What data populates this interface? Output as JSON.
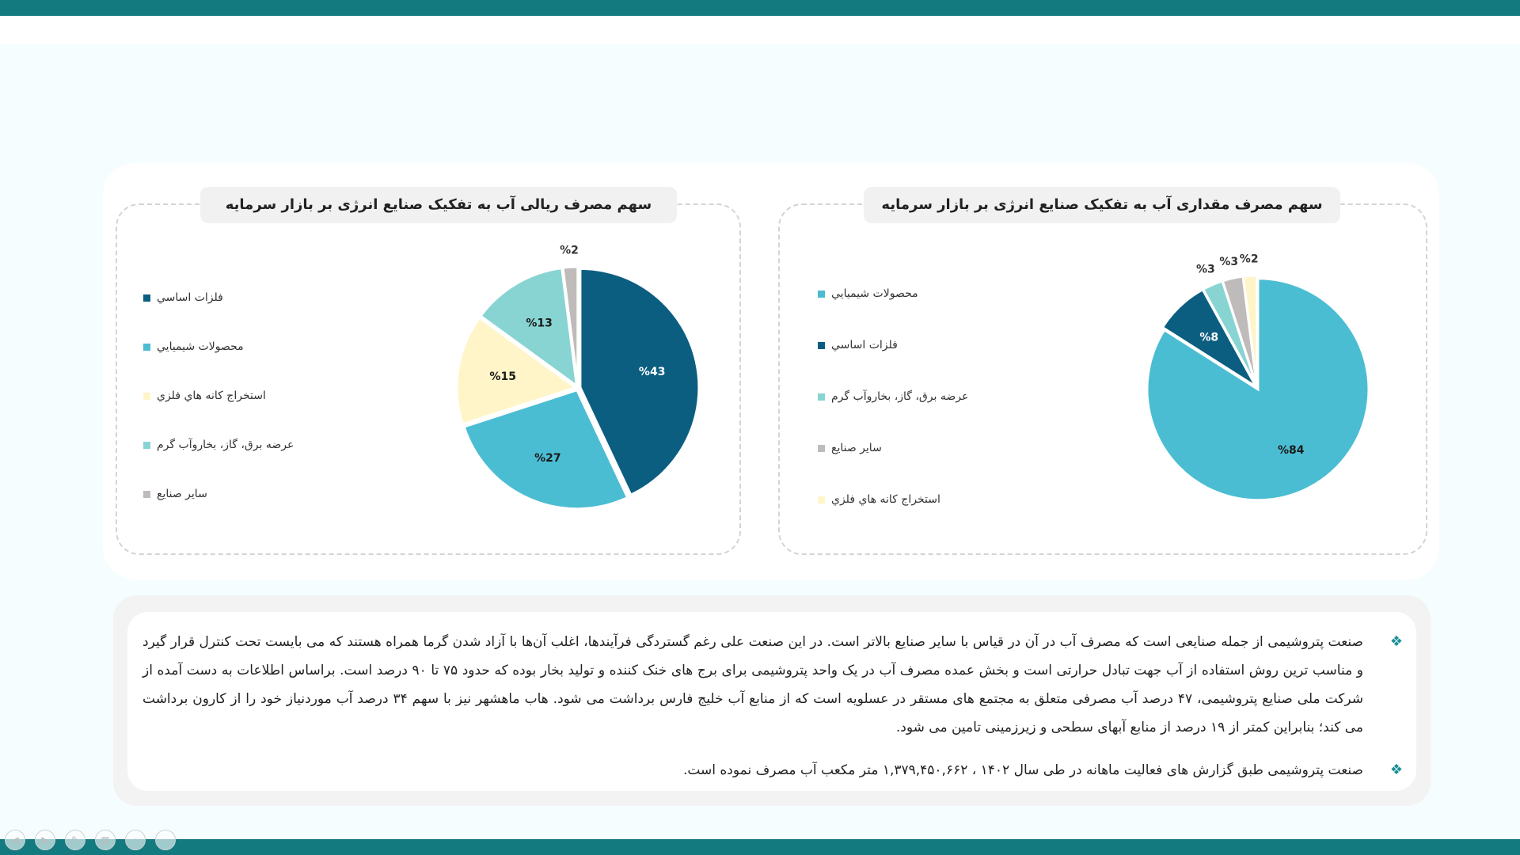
{
  "colors": {
    "dark_teal": "#0b5e80",
    "sky": "#4bbdd2",
    "cream": "#fff5c8",
    "mint": "#88d4d3",
    "gray": "#c0bbbb",
    "brand_bar": "#137a80"
  },
  "chart_data": [
    {
      "type": "pie",
      "title": "سهم مصرف ریالی آب به تفکیک صنایع انرژی بر بازار سرمایه",
      "legend_position": "left",
      "slices": [
        {
          "name": "فلزات اساسي",
          "value": 43,
          "label": "%43",
          "color": "#0b5e80"
        },
        {
          "name": "محصولات شيميايي",
          "value": 27,
          "label": "%27",
          "color": "#4bbdd2"
        },
        {
          "name": "استخراج کانه هاي فلزي",
          "value": 15,
          "label": "%15",
          "color": "#fff5c8"
        },
        {
          "name": "عرضه برق، گاز، بخاروآب گرم",
          "value": 13,
          "label": "%13",
          "color": "#88d4d3"
        },
        {
          "name": "ساير صنايع",
          "value": 2,
          "label": "%2",
          "color": "#c0bbbb"
        }
      ]
    },
    {
      "type": "pie",
      "title": "سهم مصرف مقداری آب به تفکیک صنایع انرژی بر بازار سرمایه",
      "legend_position": "left",
      "slices": [
        {
          "name": "محصولات شيميايي",
          "value": 84,
          "label": "%84",
          "color": "#4bbdd2"
        },
        {
          "name": "فلزات اساسي",
          "value": 8,
          "label": "%8",
          "color": "#0b5e80"
        },
        {
          "name": "عرضه برق، گاز، بخاروآب گرم",
          "value": 3,
          "label": "%3",
          "color": "#88d4d3"
        },
        {
          "name": "ساير صنايع",
          "value": 3,
          "label": "%3",
          "color": "#c0bbbb"
        },
        {
          "name": "استخراج کانه هاي فلزي",
          "value": 2,
          "label": "%2",
          "color": "#fff5c8"
        }
      ]
    }
  ],
  "paragraphs": [
    "صنعت پتروشیمی از جمله صنایعی است که مصرف آب در آن در قیاس با سایر صنایع بالاتر است. در این صنعت علی رغم گستردگی فرآیندها، اغلب آن‌ها با آزاد شدن گرما همراه هستند که می بایست تحت کنترل قرار گیرد و مناسب ترین روش استفاده از آب جهت تبادل حرارتی است و بخش عمده مصرف آب در یک واحد پتروشیمی برای برج های خنک کننده و تولید بخار بوده که حدود ۷۵ تا ۹۰ درصد است. براساس اطلاعات به دست آمده از شرکت ملی صنایع پتروشیمی، ۴۷ درصد آب مصرفی متعلق به مجتمع های مستقر در عسلویه است که از منابع آب خلیج فارس برداشت می شود. هاب ماهشهر نیز با سهم ۳۴ درصد آب موردنیاز خود را از کارون برداشت می کند؛ بنابراین کمتر از ۱۹ درصد از منابع آبهای سطحی و زیرزمینی تامین می شود.",
    "صنعت پتروشیمی طبق گزارش های فعالیت ماهانه در طی سال ۱۴۰۲ ، ۱,۳۷۹,۴۵۰,۶۶۲  متر مکعب آب مصرف نموده است."
  ],
  "bullet_symbol": "❖",
  "nav_icons": [
    "prev-icon",
    "next-icon",
    "pen-icon",
    "slides-icon",
    "zoom-icon",
    "more-icon"
  ],
  "nav_glyphs": [
    "◀",
    "▶",
    "✎",
    "▦",
    "⌕",
    "⋯"
  ]
}
